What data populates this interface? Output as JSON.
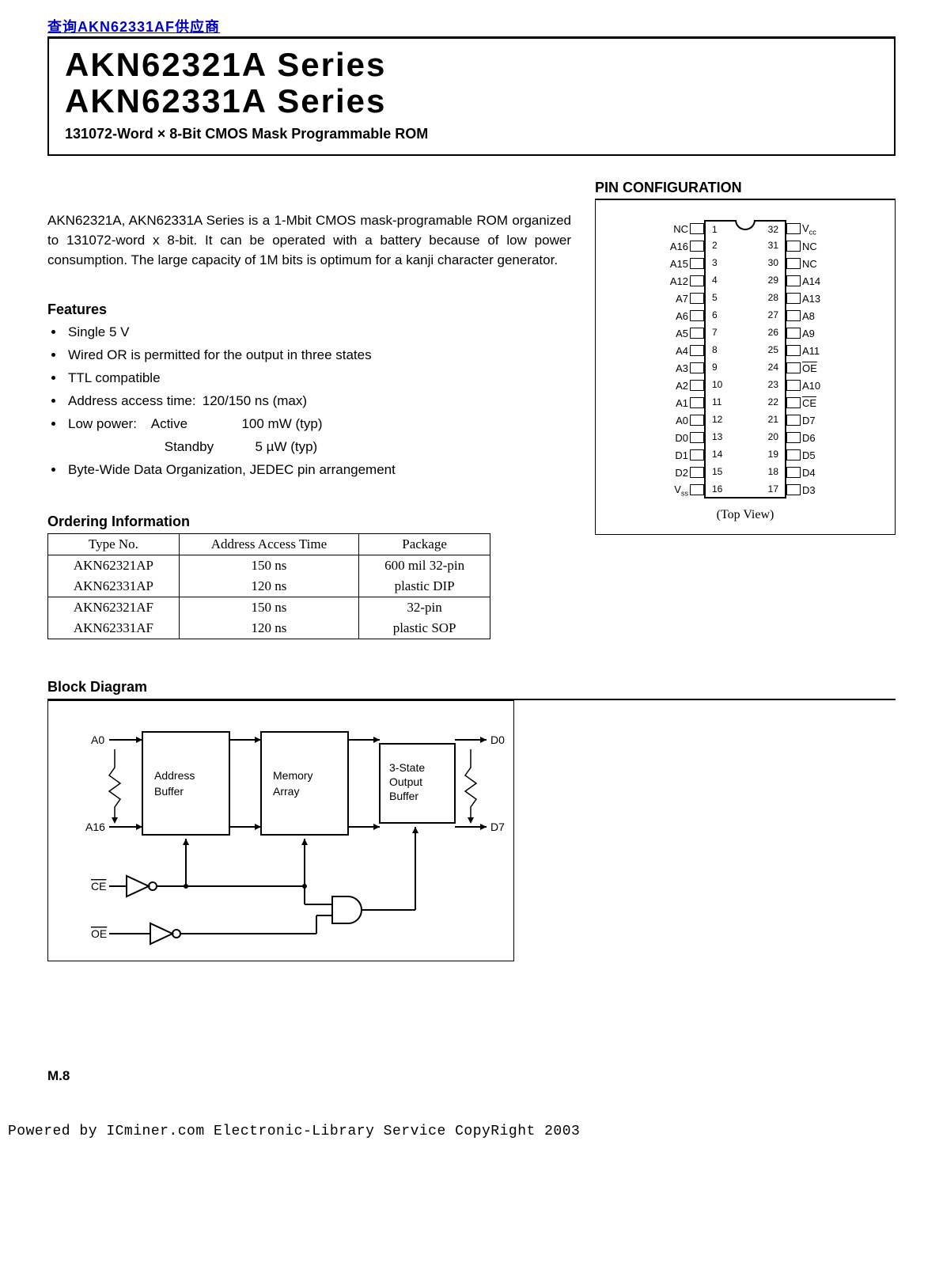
{
  "top_link": "AKN62331AF",
  "title_box": {
    "line1": "AKN62321A Series",
    "line2": "AKN62331A Series",
    "subtitle": "131072-Word × 8-Bit CMOS Mask Programmable ROM"
  },
  "intro": "AKN62321A, AKN62331A Series is a 1-Mbit CMOS mask-programable ROM organized to 131072-word x 8-bit. It can be operated with a battery because of low power consumption. The large capacity of 1M bits is optimum for a kanji character generator.",
  "features": {
    "heading": "Features",
    "items": [
      "Single 5 V",
      "Wired OR is permitted for the output in three states",
      "TTL compatible"
    ],
    "access_label": "Address access time:",
    "access_value": "120/150 ns (max)",
    "lowpower_label": "Low power:",
    "active_label": "Active",
    "active_value": "100 mW (typ)",
    "standby_label": "Standby",
    "standby_value": "5 µW (typ)",
    "last": "Byte-Wide Data Organization, JEDEC pin arrangement"
  },
  "ordering": {
    "heading": "Ordering Information",
    "columns": [
      "Type No.",
      "Address Access Time",
      "Package"
    ],
    "rows": [
      [
        "AKN62321AP",
        "150 ns",
        "600 mil 32-pin"
      ],
      [
        "AKN62331AP",
        "120 ns",
        "plastic DIP"
      ],
      [
        "AKN62321AF",
        "150 ns",
        "32-pin"
      ],
      [
        "AKN62331AF",
        "120 ns",
        "plastic SOP"
      ]
    ]
  },
  "pin_config": {
    "heading": "PIN CONFIGURATION",
    "top_view": "(Top View)",
    "left_pins": [
      {
        "label": "NC",
        "num": "1"
      },
      {
        "label": "A16",
        "num": "2"
      },
      {
        "label": "A15",
        "num": "3"
      },
      {
        "label": "A12",
        "num": "4"
      },
      {
        "label": "A7",
        "num": "5"
      },
      {
        "label": "A6",
        "num": "6"
      },
      {
        "label": "A5",
        "num": "7"
      },
      {
        "label": "A4",
        "num": "8"
      },
      {
        "label": "A3",
        "num": "9"
      },
      {
        "label": "A2",
        "num": "10"
      },
      {
        "label": "A1",
        "num": "11"
      },
      {
        "label": "A0",
        "num": "12"
      },
      {
        "label": "D0",
        "num": "13"
      },
      {
        "label": "D1",
        "num": "14"
      },
      {
        "label": "D2",
        "num": "15"
      },
      {
        "label": "Vss",
        "num": "16",
        "sub": true
      }
    ],
    "right_pins": [
      {
        "label": "Vcc",
        "num": "32",
        "sub": true
      },
      {
        "label": "NC",
        "num": "31"
      },
      {
        "label": "NC",
        "num": "30"
      },
      {
        "label": "A14",
        "num": "29"
      },
      {
        "label": "A13",
        "num": "28"
      },
      {
        "label": "A8",
        "num": "27"
      },
      {
        "label": "A9",
        "num": "26"
      },
      {
        "label": "A11",
        "num": "25"
      },
      {
        "label": "OE",
        "num": "24",
        "overline": true
      },
      {
        "label": "A10",
        "num": "23"
      },
      {
        "label": "CE",
        "num": "22",
        "overline": true
      },
      {
        "label": "D7",
        "num": "21"
      },
      {
        "label": "D6",
        "num": "20"
      },
      {
        "label": "D5",
        "num": "19"
      },
      {
        "label": "D4",
        "num": "18"
      },
      {
        "label": "D3",
        "num": "17"
      }
    ]
  },
  "block_diagram": {
    "heading": "Block Diagram",
    "labels": {
      "a0": "A0",
      "a16": "A16",
      "ce": "CE",
      "oe": "OE",
      "d0": "D0",
      "d7": "D7",
      "addr_buf": "Address\nBuffer",
      "mem_array": "Memory\nArray",
      "out_buf": "3-State\nOutput\nBuffer"
    }
  },
  "page_no": "M.8",
  "footer": "Powered by ICminer.com Electronic-Library Service CopyRight 2003",
  "colors": {
    "link": "#0000cc",
    "text": "#000000",
    "bg": "#ffffff",
    "border": "#000000"
  }
}
